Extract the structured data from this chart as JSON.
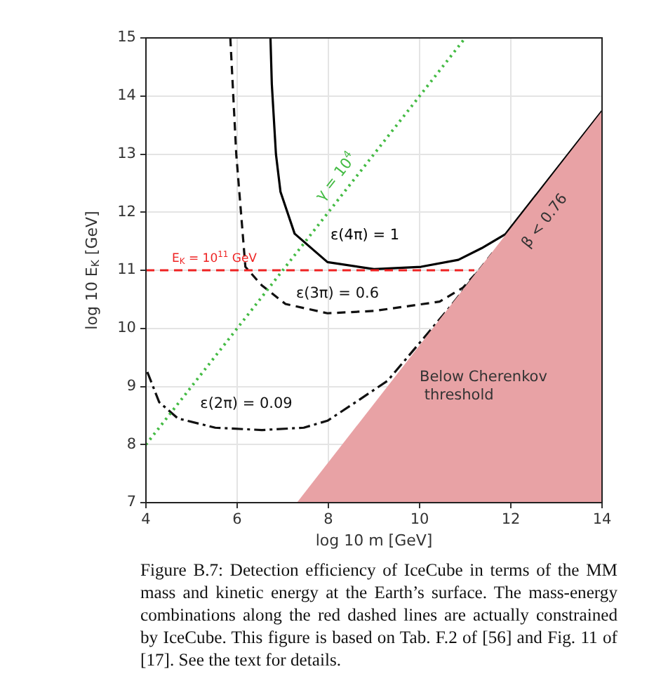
{
  "chart_data": {
    "type": "line",
    "xlabel": "log 10 m [GeV]",
    "ylabel": "log 10 E$_{K}$ [GeV]",
    "xlim": [
      4,
      14
    ],
    "ylim": [
      7,
      15
    ],
    "xticks": [
      4,
      6,
      8,
      10,
      12,
      14
    ],
    "yticks": [
      7,
      8,
      9,
      10,
      11,
      12,
      13,
      14,
      15
    ],
    "grid": true,
    "legend": false,
    "marker": "none",
    "series": [
      {
        "type": "area",
        "name": "Below Cherenkov\n threshold",
        "color": "#e8a2a5",
        "x": [
          7.31,
          14
        ],
        "values": [
          7,
          13.74
        ]
      },
      {
        "type": "line",
        "name": "γ = 10$^{4}$",
        "color": "#44bb44",
        "line_style": "dotted",
        "x": [
          4,
          11
        ],
        "values": [
          8,
          15
        ]
      },
      {
        "type": "line",
        "name": "E$_{K}$ = 10$^{11}$ GeV",
        "color": "#ee2222",
        "line_style": "dashed",
        "x": [
          4,
          11.2
        ],
        "values": [
          11,
          11
        ]
      },
      {
        "type": "line",
        "name": "ε(4π) = 1",
        "color": "#000000",
        "line_style": "solid",
        "x": [
          6.73,
          6.76,
          6.85,
          6.95,
          7.26,
          7.98,
          9.0,
          10.03,
          10.85,
          11.36,
          11.88,
          14
        ],
        "values": [
          15,
          14.2,
          13.0,
          12.35,
          11.63,
          11.14,
          11.02,
          11.06,
          11.18,
          11.38,
          11.62,
          13.74
        ]
      },
      {
        "type": "line",
        "name": "ε(3π) = 0.6",
        "color": "#111111",
        "line_style": "dashed",
        "x": [
          5.85,
          5.98,
          6.18,
          6.54,
          7.06,
          7.98,
          9.0,
          10.44,
          10.95,
          11.3,
          11.6
        ],
        "values": [
          15,
          13.0,
          11.06,
          10.74,
          10.42,
          10.26,
          10.3,
          10.46,
          10.7,
          11.0,
          11.3
        ]
      },
      {
        "type": "line",
        "name": "ε(2π) = 0.09",
        "color": "#111111",
        "line_style": "dashdot",
        "x": [
          4.03,
          4.29,
          4.7,
          5.52,
          6.54,
          7.46,
          7.98,
          8.6,
          9.3,
          10.0,
          10.7,
          11.3
        ],
        "values": [
          9.25,
          8.73,
          8.45,
          8.29,
          8.25,
          8.29,
          8.41,
          8.73,
          9.1,
          9.75,
          10.4,
          11.0
        ]
      }
    ],
    "annotations": [
      "β < 0.76",
      "Figure B.7: Detection efficiency of IceCube in terms of the MM mass and kinetic energy at the Earth’s surface. The mass-energy combinations along the red dashed lines are actually constrained by IceCube. This figure is based on Tab. F.2 of [56] and Fig. 11 of [17]. See the text for details."
    ]
  }
}
